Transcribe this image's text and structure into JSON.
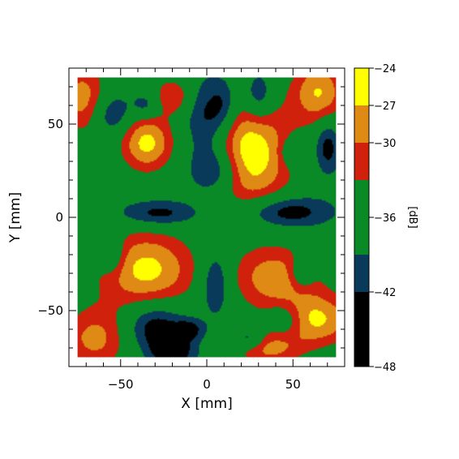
{
  "chart_data": {
    "type": "heatmap",
    "title": "",
    "xlabel": "X [mm]",
    "ylabel": "Y [mm]",
    "colorbar_label": "[dB]",
    "xlim": [
      -80,
      80
    ],
    "ylim": [
      -80,
      80
    ],
    "x_ticks": [
      -50,
      0,
      50
    ],
    "y_ticks": [
      -50,
      0,
      50
    ],
    "data_extent": [
      -75,
      75
    ],
    "colorbar": {
      "range": [
        -48,
        -24
      ],
      "ticks": [
        -24,
        -27,
        -30,
        -36,
        -42,
        -48
      ],
      "levels": [
        -48,
        -42,
        -39,
        -33,
        -30,
        -27,
        -25,
        -24
      ],
      "colors": [
        "#000000",
        "#0a3a5a",
        "#098a26",
        "#d0210d",
        "#df8a14",
        "#ffff00",
        "#ffff00"
      ]
    },
    "base_level_db": -37,
    "features": [
      {
        "x": 25,
        "y": 34,
        "peak_db": -24.5,
        "sx": 17,
        "sy": 21
      },
      {
        "x": -35,
        "y": -28,
        "peak_db": -26,
        "sx": 20,
        "sy": 15
      },
      {
        "x": -35,
        "y": 40,
        "peak_db": -26,
        "sx": 11,
        "sy": 11
      },
      {
        "x": 62,
        "y": -55,
        "peak_db": -26.5,
        "sx": 18,
        "sy": 10
      },
      {
        "x": 65,
        "y": 67,
        "peak_db": -27,
        "sx": 11,
        "sy": 12
      },
      {
        "x": 40,
        "y": -32,
        "peak_db": -28,
        "sx": 18,
        "sy": 12
      },
      {
        "x": -72,
        "y": 64,
        "peak_db": -28.5,
        "sx": 10,
        "sy": 14
      },
      {
        "x": -65,
        "y": -65,
        "peak_db": -29,
        "sx": 14,
        "sy": 12
      },
      {
        "x": 35,
        "y": -70,
        "peak_db": -29.5,
        "sx": 14,
        "sy": 7
      },
      {
        "x": -20,
        "y": 65,
        "peak_db": -30,
        "sx": 8,
        "sy": 7
      },
      {
        "x": 5,
        "y": 25,
        "peak_db": -45,
        "sx": 10,
        "sy": 9
      },
      {
        "x": -28,
        "y": 2,
        "peak_db": -44,
        "sx": 16,
        "sy": 5
      },
      {
        "x": 45,
        "y": 3,
        "peak_db": -45,
        "sx": 18,
        "sy": 6
      },
      {
        "x": 5,
        "y": -35,
        "peak_db": -44,
        "sx": 6,
        "sy": 12
      },
      {
        "x": -30,
        "y": -58,
        "peak_db": -45,
        "sx": 12,
        "sy": 9
      },
      {
        "x": -20,
        "y": -72,
        "peak_db": -45,
        "sx": 9,
        "sy": 6
      },
      {
        "x": 0,
        "y": 52,
        "peak_db": -44,
        "sx": 9,
        "sy": 15
      },
      {
        "x": -55,
        "y": 55,
        "peak_db": -43,
        "sx": 8,
        "sy": 8
      },
      {
        "x": 10,
        "y": 60,
        "peak_db": -42,
        "sx": 6,
        "sy": 10
      },
      {
        "x": -55,
        "y": -20,
        "peak_db": -43,
        "sx": 5,
        "sy": 7
      },
      {
        "x": 30,
        "y": 65,
        "peak_db": -44,
        "sx": 6,
        "sy": 9
      },
      {
        "x": 45,
        "y": -55,
        "peak_db": -44,
        "sx": 8,
        "sy": 7
      },
      {
        "x": 70,
        "y": 38,
        "peak_db": -44,
        "sx": 5,
        "sy": 10
      },
      {
        "x": 50,
        "y": 35,
        "peak_db": -43,
        "sx": 5,
        "sy": 5
      },
      {
        "x": 55,
        "y": -30,
        "peak_db": -43,
        "sx": 5,
        "sy": 6
      },
      {
        "x": -35,
        "y": 60,
        "peak_db": -42,
        "sx": 6,
        "sy": 5
      },
      {
        "x": -10,
        "y": -60,
        "peak_db": -43,
        "sx": 6,
        "sy": 4
      },
      {
        "x": 25,
        "y": -65,
        "peak_db": -44,
        "sx": 6,
        "sy": 4
      }
    ]
  }
}
